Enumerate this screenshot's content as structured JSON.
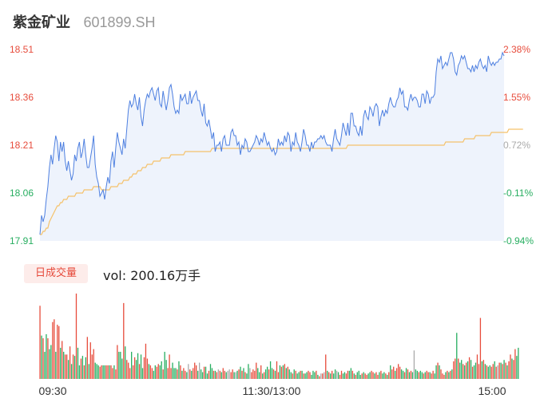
{
  "header": {
    "name": "紫金矿业",
    "code": "601899.SH"
  },
  "volume_panel": {
    "tab_label": "日成交量",
    "label_prefix": "vol:",
    "value": "200.16",
    "unit": "万手"
  },
  "colors": {
    "up": "#e74c3c",
    "down": "#27ae60",
    "neutral": "#aaaaaa",
    "price_line": "#4d7fe0",
    "price_fill": "#eef3fc",
    "avg_line": "#f5c26b",
    "axis_text": "#333333"
  },
  "chart_data": {
    "type": "line",
    "prev_close": 18.2,
    "ylim": [
      17.91,
      18.51
    ],
    "y_ticks_left": [
      18.51,
      18.36,
      18.21,
      18.06,
      17.91
    ],
    "y_ticks_right": [
      "2.38%",
      "1.55%",
      "0.72%",
      "-0.11%",
      "-0.94%"
    ],
    "x_ticks": [
      "09:30",
      "11:30/13:00",
      "15:00"
    ],
    "price": [
      17.93,
      17.99,
      17.97,
      17.99,
      18.04,
      18.08,
      18.14,
      18.18,
      18.15,
      18.2,
      18.24,
      18.22,
      18.16,
      18.22,
      18.19,
      18.22,
      18.16,
      18.13,
      18.16,
      18.13,
      18.1,
      18.12,
      18.18,
      18.16,
      18.2,
      18.22,
      18.17,
      18.19,
      18.23,
      18.18,
      18.14,
      18.14,
      18.17,
      18.2,
      18.24,
      18.15,
      18.11,
      18.09,
      18.05,
      18.06,
      18.07,
      18.04,
      18.08,
      18.11,
      18.09,
      18.16,
      18.19,
      18.14,
      18.2,
      18.25,
      18.22,
      18.2,
      18.18,
      18.23,
      18.2,
      18.26,
      18.32,
      18.35,
      18.33,
      18.34,
      18.37,
      18.34,
      18.32,
      18.36,
      18.3,
      18.27,
      18.32,
      18.35,
      18.37,
      18.36,
      18.38,
      18.39,
      18.37,
      18.35,
      18.38,
      18.39,
      18.34,
      18.33,
      18.38,
      18.35,
      18.32,
      18.35,
      18.39,
      18.4,
      18.37,
      18.33,
      18.31,
      18.32,
      18.31,
      18.37,
      18.35,
      18.36,
      18.37,
      18.34,
      18.34,
      18.38,
      18.34,
      18.36,
      18.37,
      18.38,
      18.35,
      18.35,
      18.32,
      18.3,
      18.34,
      18.28,
      18.27,
      18.29,
      18.26,
      18.23,
      18.25,
      18.19,
      18.21,
      18.21,
      18.22,
      18.19,
      18.23,
      18.24,
      18.21,
      18.21,
      18.21,
      18.25,
      18.26,
      18.24,
      18.24,
      18.21,
      18.22,
      18.18,
      18.21,
      18.2,
      18.23,
      18.22,
      18.19,
      18.19,
      18.2,
      18.21,
      18.22,
      18.24,
      18.23,
      18.21,
      18.23,
      18.22,
      18.25,
      18.23,
      18.21,
      18.22,
      18.2,
      18.19,
      18.2,
      18.18,
      18.19,
      18.23,
      18.21,
      18.22,
      18.21,
      18.24,
      18.22,
      18.25,
      18.24,
      18.19,
      18.22,
      18.21,
      18.25,
      18.22,
      18.21,
      18.19,
      18.22,
      18.26,
      18.24,
      18.21,
      18.21,
      18.19,
      18.22,
      18.2,
      18.22,
      18.22,
      18.23,
      18.23,
      18.24,
      18.23,
      18.24,
      18.22,
      18.21,
      18.21,
      18.21,
      18.19,
      18.23,
      18.26,
      18.23,
      18.22,
      18.21,
      18.24,
      18.28,
      18.26,
      18.24,
      18.28,
      18.24,
      18.31,
      18.31,
      18.27,
      18.27,
      18.25,
      18.24,
      18.27,
      18.24,
      18.3,
      18.32,
      18.3,
      18.29,
      18.33,
      18.32,
      18.3,
      18.33,
      18.34,
      18.33,
      18.27,
      18.3,
      18.32,
      18.3,
      18.32,
      18.31,
      18.34,
      18.36,
      18.34,
      18.33,
      18.33,
      18.35,
      18.36,
      18.39,
      18.37,
      18.38,
      18.33,
      18.33,
      18.32,
      18.35,
      18.37,
      18.35,
      18.36,
      18.36,
      18.35,
      18.33,
      18.33,
      18.37,
      18.37,
      18.34,
      18.38,
      18.37,
      18.34,
      18.36,
      18.36,
      18.37,
      18.44,
      18.48,
      18.47,
      18.49,
      18.45,
      18.46,
      18.47,
      18.46,
      18.48,
      18.5,
      18.5,
      18.48,
      18.44,
      18.43,
      18.46,
      18.47,
      18.49,
      18.48,
      18.49,
      18.47,
      18.45,
      18.45,
      18.44,
      18.46,
      18.44,
      18.46,
      18.45,
      18.47,
      18.48,
      18.46,
      18.45,
      18.46,
      18.44,
      18.49,
      18.47,
      18.46,
      18.47,
      18.46,
      18.47,
      18.47,
      18.48,
      18.48,
      18.5,
      18.49
    ],
    "avg": [
      17.93,
      17.93,
      17.94,
      17.94,
      17.95,
      17.95,
      17.97,
      17.98,
      17.99,
      18.0,
      18.01,
      18.02,
      18.02,
      18.03,
      18.03,
      18.04,
      18.04,
      18.04,
      18.05,
      18.05,
      18.05,
      18.05,
      18.05,
      18.06,
      18.06,
      18.06,
      18.06,
      18.06,
      18.07,
      18.07,
      18.07,
      18.07,
      18.07,
      18.07,
      18.08,
      18.08,
      18.08,
      18.08,
      18.08,
      18.07,
      18.07,
      18.07,
      18.07,
      18.07,
      18.07,
      18.08,
      18.08,
      18.08,
      18.08,
      18.08,
      18.09,
      18.09,
      18.09,
      18.1,
      18.1,
      18.1,
      18.1,
      18.11,
      18.11,
      18.12,
      18.12,
      18.12,
      18.13,
      18.13,
      18.13,
      18.14,
      18.14,
      18.14,
      18.15,
      18.15,
      18.15,
      18.15,
      18.16,
      18.16,
      18.16,
      18.16,
      18.16,
      18.17,
      18.17,
      18.17,
      18.17,
      18.17,
      18.17,
      18.18,
      18.18,
      18.18,
      18.18,
      18.18,
      18.18,
      18.18,
      18.18,
      18.18,
      18.19,
      18.19,
      18.19,
      18.19,
      18.19,
      18.19,
      18.19,
      18.19,
      18.19,
      18.19,
      18.19,
      18.19,
      18.19,
      18.19,
      18.19,
      18.19,
      18.19,
      18.2,
      18.2,
      18.2,
      18.2,
      18.2,
      18.2,
      18.2,
      18.2,
      18.2,
      18.2,
      18.2,
      18.2,
      18.2,
      18.2,
      18.2,
      18.2,
      18.2,
      18.2,
      18.2,
      18.2,
      18.2,
      18.2,
      18.2,
      18.2,
      18.2,
      18.2,
      18.2,
      18.2,
      18.2,
      18.2,
      18.2,
      18.2,
      18.2,
      18.2,
      18.2,
      18.2,
      18.2,
      18.2,
      18.2,
      18.2,
      18.2,
      18.2,
      18.2,
      18.2,
      18.2,
      18.2,
      18.2,
      18.2,
      18.2,
      18.2,
      18.2,
      18.2,
      18.2,
      18.2,
      18.2,
      18.2,
      18.2,
      18.2,
      18.2,
      18.2,
      18.2,
      18.2,
      18.2,
      18.2,
      18.2,
      18.2,
      18.2,
      18.2,
      18.2,
      18.2,
      18.2,
      18.2,
      18.2,
      18.2,
      18.2,
      18.2,
      18.2,
      18.2,
      18.2,
      18.2,
      18.2,
      18.2,
      18.2,
      18.2,
      18.2,
      18.2,
      18.21,
      18.21,
      18.21,
      18.21,
      18.21,
      18.21,
      18.21,
      18.21,
      18.21,
      18.21,
      18.21,
      18.21,
      18.21,
      18.21,
      18.21,
      18.21,
      18.21,
      18.21,
      18.21,
      18.21,
      18.21,
      18.21,
      18.21,
      18.21,
      18.21,
      18.21,
      18.21,
      18.21,
      18.21,
      18.21,
      18.21,
      18.21,
      18.21,
      18.21,
      18.21,
      18.21,
      18.21,
      18.21,
      18.21,
      18.21,
      18.21,
      18.21,
      18.21,
      18.21,
      18.21,
      18.21,
      18.21,
      18.21,
      18.21,
      18.21,
      18.21,
      18.21,
      18.21,
      18.21,
      18.21,
      18.21,
      18.21,
      18.21,
      18.21,
      18.21,
      18.21,
      18.21,
      18.22,
      18.22,
      18.22,
      18.22,
      18.22,
      18.22,
      18.22,
      18.22,
      18.22,
      18.22,
      18.22,
      18.22,
      18.23,
      18.23,
      18.23,
      18.23,
      18.23,
      18.23,
      18.23,
      18.24,
      18.24,
      18.24,
      18.24,
      18.24,
      18.24,
      18.24,
      18.24,
      18.24,
      18.24,
      18.25,
      18.25,
      18.25,
      18.25,
      18.25,
      18.25,
      18.25,
      18.25,
      18.25,
      18.25,
      18.25,
      18.26,
      18.26,
      18.26,
      18.26,
      18.26,
      18.26,
      18.26,
      18.26,
      18.26,
      18.26
    ],
    "volume": [
      54,
      32,
      30,
      20,
      33,
      30,
      22,
      25,
      42,
      44,
      20,
      40,
      39,
      23,
      28,
      20,
      18,
      18,
      14,
      24,
      11,
      18,
      17,
      63,
      23,
      10,
      15,
      17,
      10,
      16,
      31,
      11,
      27,
      18,
      22,
      12,
      11,
      10,
      9,
      10,
      10,
      10,
      10,
      10,
      10,
      10,
      8,
      10,
      7,
      25,
      20,
      20,
      15,
      56,
      24,
      14,
      12,
      8,
      20,
      10,
      16,
      14,
      19,
      11,
      18,
      8,
      16,
      26,
      15,
      11,
      10,
      8,
      6,
      10,
      9,
      11,
      10,
      13,
      7,
      20,
      14,
      8,
      18,
      8,
      12,
      8,
      8,
      7,
      13,
      10,
      6,
      8,
      6,
      5,
      11,
      7,
      6,
      8,
      12,
      10,
      6,
      12,
      7,
      5,
      9,
      9,
      4,
      6,
      11,
      8,
      6,
      6,
      5,
      7,
      6,
      5,
      8,
      6,
      5,
      6,
      7,
      5,
      7,
      5,
      5,
      6,
      7,
      9,
      6,
      8,
      5,
      4,
      11,
      8,
      5,
      7,
      6,
      12,
      8,
      5,
      10,
      4,
      5,
      7,
      9,
      7,
      13,
      8,
      7,
      6,
      13,
      5,
      10,
      9,
      10,
      11,
      8,
      9,
      7,
      5,
      4,
      7,
      6,
      4,
      5,
      6,
      6,
      4,
      4,
      5,
      6,
      5,
      3,
      6,
      5,
      6,
      3,
      2,
      4,
      4,
      5,
      18,
      6,
      5,
      4,
      6,
      4,
      7,
      6,
      5,
      3,
      6,
      4,
      5,
      4,
      6,
      6,
      8,
      6,
      4,
      3,
      5,
      6,
      3,
      4,
      5,
      4,
      3,
      4,
      5,
      6,
      5,
      4,
      5,
      3,
      5,
      6,
      4,
      5,
      4,
      3,
      5,
      10,
      7,
      9,
      6,
      8,
      11,
      9,
      7,
      6,
      5,
      8,
      7,
      5,
      6,
      5,
      21,
      7,
      6,
      5,
      6,
      5,
      4,
      5,
      6,
      5,
      5,
      4,
      6,
      4,
      10,
      12,
      10,
      7,
      4,
      3,
      5,
      6,
      5,
      6,
      7,
      13,
      15,
      34,
      15,
      12,
      14,
      11,
      10,
      12,
      13,
      16,
      14,
      9,
      10,
      12,
      18,
      11,
      45,
      13,
      14,
      11,
      10,
      9,
      10,
      9,
      11,
      13,
      9,
      10,
      12,
      12,
      11,
      14,
      12,
      10,
      13,
      18,
      15,
      14,
      22,
      17,
      23
    ],
    "volume_dir": [
      "up",
      "down",
      "up",
      "down",
      "down",
      "up",
      "down",
      "down",
      "up",
      "up",
      "down",
      "up",
      "up",
      "down",
      "up",
      "down",
      "up",
      "up",
      "down",
      "up",
      "down",
      "up",
      "down",
      "up",
      "down",
      "down",
      "up",
      "down",
      "up",
      "down",
      "up",
      "down",
      "up",
      "up",
      "up",
      "down",
      "down",
      "down",
      "up",
      "up",
      "down",
      "down",
      "up",
      "up",
      "down",
      "up",
      "up",
      "down",
      "up",
      "up",
      "down",
      "down",
      "down",
      "up",
      "down",
      "up",
      "up",
      "up",
      "down",
      "up",
      "up",
      "down",
      "down",
      "up",
      "down",
      "down",
      "up",
      "up",
      "up",
      "down",
      "up",
      "up",
      "down",
      "down",
      "up",
      "up",
      "down",
      "down",
      "up",
      "down",
      "down",
      "up",
      "up",
      "up",
      "down",
      "down",
      "down",
      "up",
      "down",
      "up",
      "down",
      "up",
      "up",
      "down",
      "neutral",
      "up",
      "down",
      "up",
      "up",
      "up",
      "down",
      "neutral",
      "down",
      "down",
      "up",
      "down",
      "down",
      "up",
      "down",
      "down",
      "up",
      "down",
      "up",
      "neutral",
      "up",
      "down",
      "up",
      "up",
      "down",
      "neutral",
      "neutral",
      "up",
      "up",
      "down",
      "neutral",
      "down",
      "up",
      "down",
      "up",
      "down",
      "up",
      "down",
      "down",
      "neutral",
      "up",
      "up",
      "up",
      "up",
      "down",
      "down",
      "up",
      "down",
      "up",
      "down",
      "down",
      "up",
      "down",
      "down",
      "up",
      "down",
      "up",
      "up",
      "down",
      "up",
      "down",
      "up",
      "down",
      "up",
      "down",
      "down",
      "up",
      "down",
      "up",
      "down",
      "down",
      "up",
      "down",
      "up",
      "down",
      "down",
      "up",
      "up",
      "down",
      "down",
      "down",
      "up",
      "down",
      "up",
      "neutral",
      "up",
      "neutral",
      "up",
      "down",
      "up",
      "down",
      "up",
      "down",
      "down",
      "neutral",
      "down",
      "up",
      "up",
      "down",
      "down",
      "up",
      "up",
      "down",
      "down",
      "up",
      "down",
      "up",
      "down",
      "down",
      "down",
      "up",
      "down",
      "up",
      "up",
      "down",
      "down",
      "up",
      "up",
      "down",
      "up",
      "up",
      "down",
      "up",
      "down",
      "down",
      "up",
      "down",
      "up",
      "down",
      "up",
      "up",
      "down",
      "up",
      "up",
      "up",
      "down",
      "down",
      "up",
      "down",
      "up",
      "down",
      "up",
      "down",
      "neutral",
      "down",
      "down",
      "up",
      "down",
      "down",
      "up",
      "down",
      "up",
      "up",
      "down",
      "up",
      "up",
      "down",
      "down",
      "up",
      "down",
      "up",
      "up",
      "up",
      "down",
      "up",
      "down",
      "up",
      "down",
      "up",
      "up",
      "down",
      "up",
      "down",
      "down",
      "up",
      "down",
      "up",
      "down",
      "up",
      "down",
      "up",
      "down",
      "down",
      "up",
      "up",
      "up",
      "down",
      "up",
      "down",
      "up",
      "down",
      "down",
      "up",
      "up",
      "down",
      "up",
      "neutral",
      "up",
      "down",
      "up",
      "down",
      "up",
      "down",
      "up",
      "up",
      "down",
      "up",
      "up",
      "down",
      "down",
      "up",
      "down",
      "up",
      "up",
      "down",
      "up",
      "down",
      "down",
      "up",
      "down",
      "up",
      "up",
      "down",
      "down"
    ]
  }
}
